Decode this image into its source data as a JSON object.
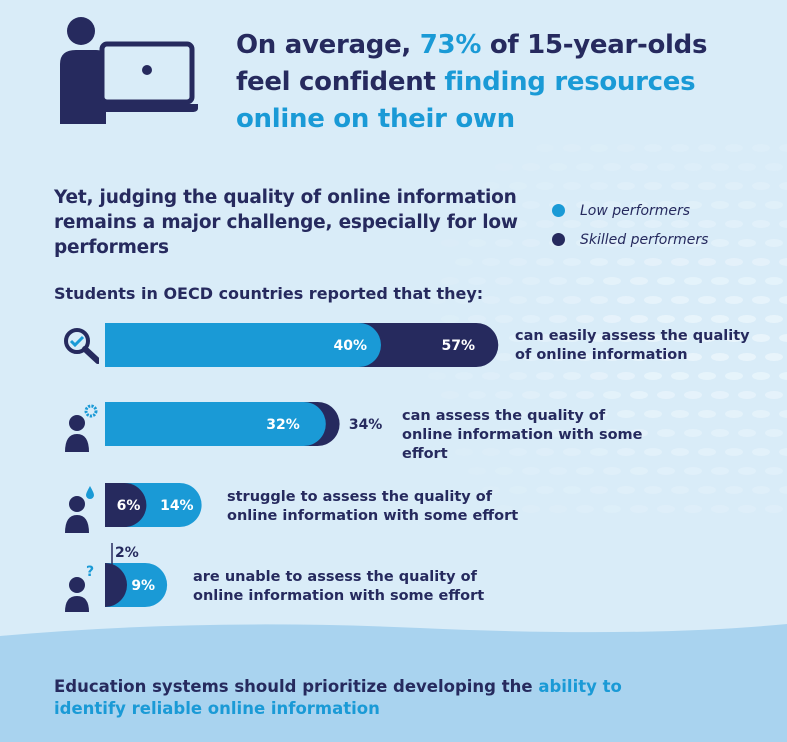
{
  "headline": {
    "part1": "On average,",
    "pct": "73%",
    "part2": "of 15-year-olds feel confident",
    "accent": "finding resources online on their own"
  },
  "subheading": "Yet, judging the quality of online information remains a major challenge, especially for low performers",
  "legend": [
    {
      "label": "Low performers",
      "color": "#1a9ad6"
    },
    {
      "label": "Skilled performers",
      "color": "#262a5e"
    }
  ],
  "intro": "Students in OECD countries reported that they:",
  "chart_data": {
    "type": "bar",
    "orientation": "horizontal-overlapping",
    "categories": [
      "can easily assess the quality of online information",
      "can assess the quality of online information with some effort",
      "struggle to assess the quality of online information with some effort",
      "are unable to assess the quality of online information with some effort"
    ],
    "series": [
      {
        "name": "Low performers",
        "values": [
          40,
          32,
          14,
          9
        ],
        "labels": [
          "40%",
          "32%",
          "14%",
          "9%"
        ],
        "color": "#1a9ad6"
      },
      {
        "name": "Skilled performers",
        "values": [
          57,
          34,
          6,
          2
        ],
        "labels": [
          "57%",
          "34%",
          "6%",
          "2%"
        ],
        "color": "#262a5e"
      }
    ],
    "row_icons": [
      "magnifier-icon",
      "student-gear-icon",
      "student-drop-icon",
      "student-question-icon"
    ]
  },
  "conclusion": {
    "plain": "Education systems should prioritize developing the",
    "accent": "ability to identify reliable online information"
  }
}
